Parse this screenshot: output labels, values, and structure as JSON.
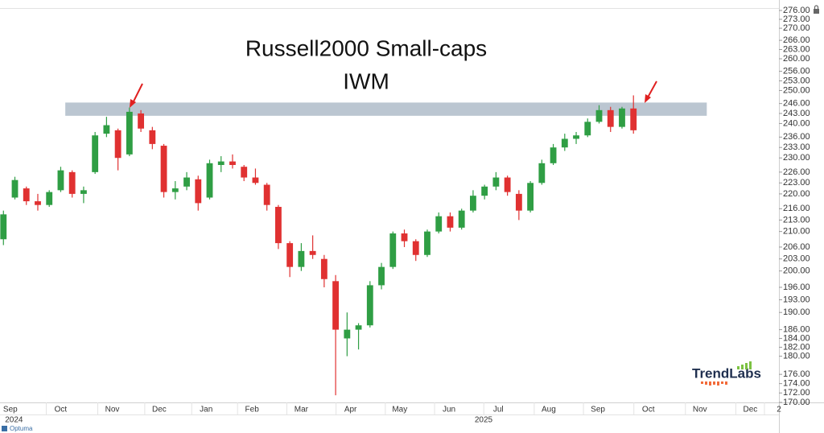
{
  "chart_data": {
    "type": "candlestick",
    "title": "Russell2000 Small-caps",
    "subtitle": "IWM",
    "watermark": "TrendLabs",
    "source": "Optuma",
    "log": true,
    "up_color": "#2f9e44",
    "down_color": "#e03131",
    "band_color": "#b7c3cf",
    "resistance_band": [
      242.3,
      246.3
    ],
    "band_x": [
      5.4,
      61.4
    ],
    "xlim": [
      -0.3,
      67.7
    ],
    "xticks": [
      {
        "value": 0.6,
        "label": "Sep"
      },
      {
        "value": 5.0,
        "label": "Oct"
      },
      {
        "value": 9.5,
        "label": "Nov"
      },
      {
        "value": 13.6,
        "label": "Dec"
      },
      {
        "value": 17.7,
        "label": "Jan"
      },
      {
        "value": 21.7,
        "label": "Feb"
      },
      {
        "value": 26.0,
        "label": "Mar"
      },
      {
        "value": 30.3,
        "label": "Apr"
      },
      {
        "value": 34.6,
        "label": "May"
      },
      {
        "value": 38.9,
        "label": "Jun"
      },
      {
        "value": 43.2,
        "label": "Jul"
      },
      {
        "value": 47.6,
        "label": "Aug"
      },
      {
        "value": 51.9,
        "label": "Sep"
      },
      {
        "value": 56.3,
        "label": "Oct"
      },
      {
        "value": 60.8,
        "label": "Nov"
      },
      {
        "value": 65.2,
        "label": "Dec"
      },
      {
        "value": 67.7,
        "label": "2"
      }
    ],
    "year_ticks": [
      {
        "value": 0.7,
        "label": "2024"
      },
      {
        "value": 41.7,
        "label": "2025"
      }
    ],
    "ylim": [
      170,
      276
    ],
    "yticks": [
      {
        "value": 276,
        "label": "276.00"
      },
      {
        "value": 273,
        "label": "273.00"
      },
      {
        "value": 270,
        "label": "270.00"
      },
      {
        "value": 266,
        "label": "266.00"
      },
      {
        "value": 263,
        "label": "263.00"
      },
      {
        "value": 260,
        "label": "260.00"
      },
      {
        "value": 256,
        "label": "256.00"
      },
      {
        "value": 253,
        "label": "253.00"
      },
      {
        "value": 250,
        "label": "250.00"
      },
      {
        "value": 246,
        "label": "246.00"
      },
      {
        "value": 243,
        "label": "243.00"
      },
      {
        "value": 240,
        "label": "240.00"
      },
      {
        "value": 236,
        "label": "236.00"
      },
      {
        "value": 233,
        "label": "233.00"
      },
      {
        "value": 230,
        "label": "230.00"
      },
      {
        "value": 226,
        "label": "226.00"
      },
      {
        "value": 223,
        "label": "223.00"
      },
      {
        "value": 220,
        "label": "220.00"
      },
      {
        "value": 216,
        "label": "216.00"
      },
      {
        "value": 213,
        "label": "213.00"
      },
      {
        "value": 210,
        "label": "210.00"
      },
      {
        "value": 206,
        "label": "206.00"
      },
      {
        "value": 203,
        "label": "203.00"
      },
      {
        "value": 200,
        "label": "200.00"
      },
      {
        "value": 196,
        "label": "196.00"
      },
      {
        "value": 193,
        "label": "193.00"
      },
      {
        "value": 190,
        "label": "190.00"
      },
      {
        "value": 186,
        "label": "186.00"
      },
      {
        "value": 184,
        "label": "184.00"
      },
      {
        "value": 182,
        "label": "182.00"
      },
      {
        "value": 180,
        "label": "180.00"
      },
      {
        "value": 176,
        "label": "176.00"
      },
      {
        "value": 174,
        "label": "174.00"
      },
      {
        "value": 172,
        "label": "172.00"
      },
      {
        "value": 170,
        "label": "170.00"
      }
    ],
    "x": [
      0,
      1,
      2,
      3,
      4,
      5,
      6,
      7,
      8,
      9,
      10,
      11,
      12,
      13,
      14,
      15,
      16,
      17,
      18,
      19,
      20,
      21,
      22,
      23,
      24,
      25,
      26,
      27,
      28,
      29,
      30,
      31,
      32,
      33,
      34,
      35,
      36,
      37,
      38,
      39,
      40,
      41,
      42,
      43,
      44,
      45,
      46,
      47,
      48,
      49,
      50,
      51,
      52,
      53,
      54,
      55
    ],
    "open": [
      208,
      219,
      221.5,
      218,
      217,
      221,
      226,
      220,
      226,
      237,
      238,
      231,
      243,
      238,
      233.5,
      220.5,
      222,
      224,
      219,
      228,
      229,
      227.5,
      224.5,
      222.5,
      216.5,
      207,
      201,
      205,
      203,
      197.5,
      184,
      186,
      187,
      196.5,
      201,
      209.5,
      207.5,
      204,
      210,
      214,
      211,
      215.5,
      219.5,
      222,
      224.5,
      220,
      215.5,
      223,
      228.5,
      233,
      235.5,
      236.5,
      240.5,
      244,
      239,
      244.5
    ],
    "high": [
      215.5,
      224.7,
      222,
      220,
      221,
      227.5,
      226.5,
      222,
      237.5,
      242,
      238.5,
      244.8,
      244,
      239,
      234,
      223.5,
      226,
      225,
      229.5,
      230.5,
      231,
      228,
      227,
      223,
      217,
      207.5,
      207,
      209,
      204,
      199,
      190,
      187.5,
      197.5,
      202,
      210,
      210.5,
      208,
      210.5,
      215,
      215,
      216,
      221,
      222.5,
      226,
      225,
      221,
      223.5,
      229.5,
      234,
      237,
      237.5,
      241.5,
      245.5,
      245,
      245,
      248.5
    ],
    "low": [
      206.5,
      218.5,
      217,
      215.5,
      216.5,
      220.5,
      219,
      217.5,
      225.5,
      236,
      226.5,
      230.5,
      237.5,
      232.5,
      219,
      218.5,
      221,
      215.5,
      218.5,
      226,
      227,
      223.5,
      222.5,
      215.5,
      205.5,
      198.5,
      200,
      203,
      196,
      171.5,
      180,
      181.5,
      186.5,
      195.5,
      200.5,
      206,
      202.5,
      203.5,
      209.5,
      210,
      210.5,
      215,
      218.5,
      221,
      219.5,
      213,
      215,
      222.5,
      228,
      232,
      234,
      236,
      240,
      237.5,
      238.5,
      237
    ],
    "close": [
      214.5,
      223.8,
      218,
      217,
      220.5,
      226.5,
      220,
      221,
      236.5,
      239.5,
      230,
      243.5,
      238.5,
      234,
      220.5,
      221.5,
      224.5,
      217.5,
      228.5,
      229,
      228,
      224.5,
      223,
      217,
      207,
      201,
      205,
      204,
      198,
      186,
      186,
      187,
      196.5,
      201,
      209.5,
      207.5,
      204,
      210,
      214,
      211,
      215.5,
      219.5,
      222,
      224.5,
      220.5,
      215.5,
      223,
      228.5,
      233,
      235.5,
      236.5,
      240.5,
      244,
      239,
      244.5,
      238
    ]
  }
}
